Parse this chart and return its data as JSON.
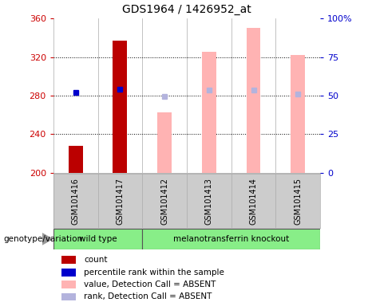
{
  "title": "GDS1964 / 1426952_at",
  "samples": [
    "GSM101416",
    "GSM101417",
    "GSM101412",
    "GSM101413",
    "GSM101414",
    "GSM101415"
  ],
  "groups": {
    "wild type": [
      "GSM101416",
      "GSM101417"
    ],
    "melanotransferrin knockout": [
      "GSM101412",
      "GSM101413",
      "GSM101414",
      "GSM101415"
    ]
  },
  "ylim_left": [
    200,
    360
  ],
  "ylim_right": [
    0,
    100
  ],
  "yticks_left": [
    200,
    240,
    280,
    320,
    360
  ],
  "yticks_right": [
    0,
    25,
    50,
    75,
    100
  ],
  "ytick_labels_right": [
    "0",
    "25",
    "50",
    "75",
    "100%"
  ],
  "count_bars": {
    "GSM101416": 228,
    "GSM101417": 337
  },
  "count_color": "#bb0000",
  "percentile_markers": {
    "GSM101416": {
      "value": 283
    },
    "GSM101417": {
      "value": 287
    }
  },
  "percentile_color": "#0000cc",
  "absent_value_bars": {
    "GSM101412": 263,
    "GSM101413": 325,
    "GSM101414": 350,
    "GSM101415": 322
  },
  "absent_rank_markers": {
    "GSM101412": 279,
    "GSM101413": 286,
    "GSM101414": 286,
    "GSM101415": 282
  },
  "absent_value_color": "#ffb3b3",
  "absent_rank_color": "#b3b3dd",
  "group_colors": {
    "wild type": "#88ee88",
    "melanotransferrin knockout": "#88ee88"
  },
  "group_label": "genotype/variation",
  "legend_items": [
    {
      "label": "count",
      "color": "#bb0000"
    },
    {
      "label": "percentile rank within the sample",
      "color": "#0000cc"
    },
    {
      "label": "value, Detection Call = ABSENT",
      "color": "#ffb3b3"
    },
    {
      "label": "rank, Detection Call = ABSENT",
      "color": "#b3b3dd"
    }
  ],
  "bar_width": 0.32,
  "background_color": "#ffffff",
  "plot_bg_color": "#ffffff",
  "axis_color_left": "#cc0000",
  "axis_color_right": "#0000cc",
  "grid_yticks": [
    240,
    280,
    320
  ]
}
